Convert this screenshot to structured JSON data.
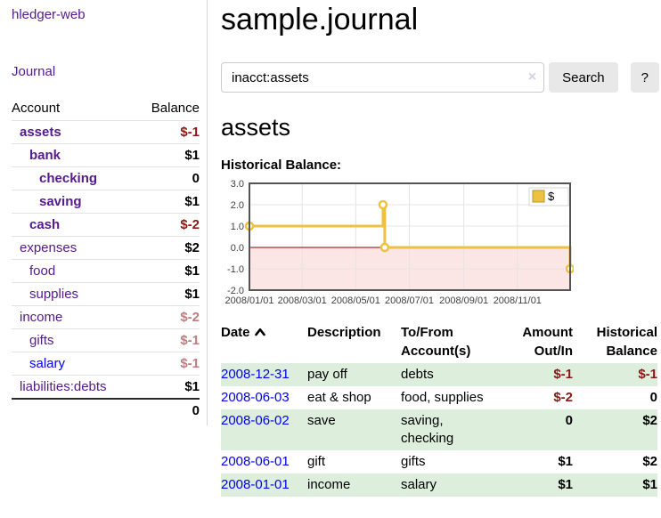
{
  "app_title": "hledger-web",
  "sidebar": {
    "nav_journal": "Journal",
    "accounts": {
      "headers": {
        "account": "Account",
        "balance": "Balance"
      },
      "rows": [
        {
          "account": "assets",
          "balance": "$-1",
          "depth": 1,
          "bold": true
        },
        {
          "account": "bank",
          "balance": "$1",
          "depth": 2,
          "bold": true
        },
        {
          "account": "checking",
          "balance": "0",
          "depth": 3,
          "bold": true
        },
        {
          "account": "saving",
          "balance": "$1",
          "depth": 3,
          "bold": true
        },
        {
          "account": "cash",
          "balance": "$-2",
          "depth": 2,
          "bold": true
        },
        {
          "account": "expenses",
          "balance": "$2",
          "depth": 1,
          "bold": false
        },
        {
          "account": "food",
          "balance": "$1",
          "depth": 2,
          "bold": false
        },
        {
          "account": "supplies",
          "balance": "$1",
          "depth": 2,
          "bold": false
        },
        {
          "account": "income",
          "balance": "$-2",
          "depth": 1,
          "bold": false
        },
        {
          "account": "gifts",
          "balance": "$-1",
          "depth": 2,
          "bold": false
        },
        {
          "account": "salary",
          "balance": "$-1",
          "depth": 2,
          "bold": false,
          "link_color": "blue"
        },
        {
          "account": "liabilities:debts",
          "balance": "$1",
          "depth": 1,
          "bold": false
        }
      ],
      "total": "0"
    }
  },
  "main": {
    "title": "sample.journal",
    "search": {
      "value": "inacct:assets",
      "clear_icon": "×",
      "search_button": "Search",
      "help_button": "?"
    },
    "account_heading": "assets",
    "chart_label": "Historical Balance:",
    "register": {
      "headers": {
        "date": "Date",
        "sort_icon": "chevron-up",
        "description": "Description",
        "accounts_line1": "To/From",
        "accounts_line2": "Account(s)",
        "amount_line1": "Amount",
        "amount_line2": "Out/In",
        "balance_line1": "Historical",
        "balance_line2": "Balance"
      },
      "rows": [
        {
          "date": "2008-12-31",
          "description": "pay off",
          "accounts": "debts",
          "amount": "$-1",
          "balance": "$-1"
        },
        {
          "date": "2008-06-03",
          "description": "eat & shop",
          "accounts": "food, supplies",
          "amount": "$-2",
          "balance": "0"
        },
        {
          "date": "2008-06-02",
          "description": "save",
          "accounts": "saving, checking",
          "amount": "0",
          "balance": "$2"
        },
        {
          "date": "2008-06-01",
          "description": "gift",
          "accounts": "gifts",
          "amount": "$1",
          "balance": "$2"
        },
        {
          "date": "2008-01-01",
          "description": "income",
          "accounts": "salary",
          "amount": "$1",
          "balance": "$1"
        }
      ]
    }
  },
  "chart_data": {
    "type": "line",
    "step": true,
    "title": "Historical Balance",
    "series": [
      {
        "name": "$",
        "points": [
          [
            "2008-01-01",
            1
          ],
          [
            "2008-06-01",
            2
          ],
          [
            "2008-06-03",
            0
          ],
          [
            "2008-12-31",
            -1
          ]
        ]
      }
    ],
    "x_start": "2008-01-01",
    "x_end": "2008-12-31",
    "x_span_days": 365,
    "xticks": [
      "2008/01/01",
      "2008/03/01",
      "2008/05/01",
      "2008/07/01",
      "2008/09/01",
      "2008/11/01"
    ],
    "yticks": [
      3.0,
      2.0,
      1.0,
      0.0,
      -1.0,
      -2.0
    ],
    "ylim": [
      -2,
      3
    ],
    "grid": true,
    "legend": {
      "position": "top-right",
      "label": "$"
    },
    "colors": {
      "line": "#EDC240",
      "marker_fill": "#ffffff",
      "negative_area": "#fbe5e5",
      "zero_line": "#8b0000",
      "grid": "#e4e4e4",
      "border": "#545454"
    }
  },
  "colors": {
    "link_purple": "#551A8B",
    "link_blue": "#0000EE",
    "negative_strong": "#8b1717",
    "negative_soft": "#bd7d7d",
    "row_green": "#ddeedd",
    "button_bg": "#e8e8e8"
  }
}
